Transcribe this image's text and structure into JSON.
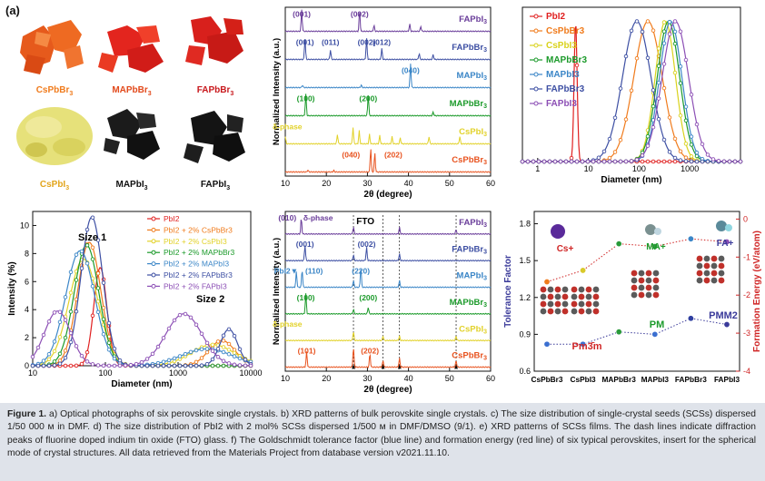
{
  "panel_a": {
    "tag": "(a)",
    "crystals": [
      {
        "name": "CsPbBr3",
        "label": "CsPbBr",
        "sub": "3",
        "color": "#e8511c",
        "label_color": "#f07b1c"
      },
      {
        "name": "MAPbBr3",
        "label": "MAPbBr",
        "sub": "3",
        "color": "#e3251e",
        "label_color": "#e24a1c"
      },
      {
        "name": "FAPbBr3",
        "label": "FAPbBr",
        "sub": "3",
        "color": "#d8201c",
        "label_color": "#c8181c"
      },
      {
        "name": "CsPbI3",
        "label": "CsPbI",
        "sub": "3",
        "color": "#e6e17a",
        "label_color": "#e2a51c"
      },
      {
        "name": "MAPbI3",
        "label": "MAPbI",
        "sub": "3",
        "color": "#1a1a1a",
        "label_color": "#111111"
      },
      {
        "name": "FAPbI3",
        "label": "FAPbI",
        "sub": "3",
        "color": "#151515",
        "label_color": "#111111"
      }
    ]
  },
  "chart_data": [
    {
      "id": "b",
      "type": "line",
      "xlabel": "2θ (degree)",
      "ylabel": "Normalized Intensity (a.u.)",
      "xlim": [
        10,
        60
      ],
      "xticks": [
        10,
        20,
        30,
        40,
        50,
        60
      ],
      "series": [
        {
          "name": "FAPbI3",
          "color": "#6a3d9a",
          "peaks": [
            {
              "x": 14.0,
              "h": 0.9
            },
            {
              "x": 28.1,
              "h": 0.9
            },
            {
              "x": 31.6,
              "h": 0.25
            },
            {
              "x": 40.3,
              "h": 0.3
            },
            {
              "x": 43.0,
              "h": 0.2
            }
          ],
          "labels": [
            {
              "x": 14.0,
              "text": "(001)"
            },
            {
              "x": 28.1,
              "text": "(002)"
            }
          ]
        },
        {
          "name": "FAPbBr3",
          "color": "#3d4fa3",
          "peaks": [
            {
              "x": 14.8,
              "h": 0.9
            },
            {
              "x": 21.0,
              "h": 0.4
            },
            {
              "x": 29.8,
              "h": 0.9
            },
            {
              "x": 33.5,
              "h": 0.45
            },
            {
              "x": 42.6,
              "h": 0.25
            },
            {
              "x": 46.0,
              "h": 0.2
            }
          ],
          "labels": [
            {
              "x": 14.8,
              "text": "(001)"
            },
            {
              "x": 21.0,
              "text": "(011)"
            },
            {
              "x": 29.8,
              "text": "(002)"
            },
            {
              "x": 33.5,
              "text": "(012)"
            }
          ]
        },
        {
          "name": "MAPbI3",
          "color": "#3b86c7",
          "peaks": [
            {
              "x": 40.5,
              "h": 1.0
            },
            {
              "x": 14.2,
              "h": 0.1
            },
            {
              "x": 28.5,
              "h": 0.1
            }
          ],
          "labels": [
            {
              "x": 40.5,
              "text": "(040)"
            }
          ]
        },
        {
          "name": "MAPbBr3",
          "color": "#1b9a2a",
          "peaks": [
            {
              "x": 15.0,
              "h": 0.9
            },
            {
              "x": 30.2,
              "h": 0.9
            },
            {
              "x": 46.0,
              "h": 0.15
            }
          ],
          "labels": [
            {
              "x": 15.0,
              "text": "(100)"
            },
            {
              "x": 30.2,
              "text": "(200)"
            }
          ]
        },
        {
          "name": "CsPbI3",
          "color": "#e2d22a",
          "peaks": [
            {
              "x": 10.0,
              "h": 0.3
            },
            {
              "x": 22.7,
              "h": 0.4
            },
            {
              "x": 26.5,
              "h": 0.7
            },
            {
              "x": 28.0,
              "h": 0.55
            },
            {
              "x": 30.5,
              "h": 0.4
            },
            {
              "x": 33.0,
              "h": 0.35
            },
            {
              "x": 36.0,
              "h": 0.3
            },
            {
              "x": 38.0,
              "h": 0.25
            },
            {
              "x": 45.0,
              "h": 0.3
            },
            {
              "x": 52.5,
              "h": 0.3
            }
          ],
          "labels": [
            {
              "x": 10.5,
              "text": "δ-phase"
            }
          ]
        },
        {
          "name": "CsPbBr3",
          "color": "#e8531f",
          "peaks": [
            {
              "x": 30.8,
              "h": 1.0
            },
            {
              "x": 31.8,
              "h": 0.8
            },
            {
              "x": 15.5,
              "h": 0.08
            },
            {
              "x": 21.8,
              "h": 0.06
            }
          ],
          "labels": [
            {
              "x": 26.0,
              "text": "(040)"
            },
            {
              "x": 36.3,
              "text": "(202)"
            }
          ]
        }
      ]
    },
    {
      "id": "c",
      "type": "line",
      "xlabel": "Diameter (nm)",
      "ylabel": "",
      "xscale": "log",
      "xlim": [
        0.5,
        10000
      ],
      "xticks": [
        1,
        10,
        100,
        1000
      ],
      "series": [
        {
          "name": "PbI2",
          "color": "#e02020",
          "peaks": [
            {
              "mu": 5.6,
              "sigma": 0.03
            }
          ]
        },
        {
          "name": "CsPbBr3",
          "color": "#f07b1c",
          "peaks": [
            {
              "mu": 150,
              "sigma": 0.28
            }
          ]
        },
        {
          "name": "CsPbI3",
          "color": "#d9d21c",
          "peaks": [
            {
              "mu": 330,
              "sigma": 0.2
            }
          ]
        },
        {
          "name": "MAPbBr3",
          "color": "#1b9a2a",
          "peaks": [
            {
              "mu": 380,
              "sigma": 0.22
            }
          ]
        },
        {
          "name": "MAPbI3",
          "color": "#3b86c7",
          "peaks": [
            {
              "mu": 420,
              "sigma": 0.22
            }
          ]
        },
        {
          "name": "FAPbBr3",
          "color": "#3d4fa3",
          "peaks": [
            {
              "mu": 90,
              "sigma": 0.28
            }
          ]
        },
        {
          "name": "FAPbI3",
          "color": "#8c4fb5",
          "peaks": [
            {
              "mu": 520,
              "sigma": 0.26
            }
          ]
        }
      ]
    },
    {
      "id": "d",
      "type": "line",
      "xlabel": "Diameter (nm)",
      "ylabel": "Intensity (%)",
      "xscale": "log",
      "xlim": [
        10,
        10000
      ],
      "ylim": [
        0,
        11
      ],
      "xticks": [
        10,
        100,
        1000,
        10000
      ],
      "yticks": [
        0,
        2,
        4,
        6,
        8,
        10
      ],
      "annotations": [
        "Size 1",
        "Size 2"
      ],
      "series": [
        {
          "name": "PbI2",
          "color": "#e02020",
          "peaks": [
            {
              "mu": 85,
              "sigma": 0.09,
              "h": 7.0
            }
          ]
        },
        {
          "name": "PbI2 + 2% CsPbBr3",
          "color": "#f07b1c",
          "peaks": [
            {
              "mu": 60,
              "sigma": 0.16,
              "h": 8.8
            },
            {
              "mu": 4000,
              "sigma": 0.18,
              "h": 1.8
            }
          ]
        },
        {
          "name": "PbI2 + 2% CsPbI3",
          "color": "#e2d22a",
          "peaks": [
            {
              "mu": 50,
              "sigma": 0.2,
              "h": 7.6
            },
            {
              "mu": 3000,
              "sigma": 0.3,
              "h": 1.5
            }
          ]
        },
        {
          "name": "PbI2 + 2% MAPbBr3",
          "color": "#1b9a2a",
          "peaks": [
            {
              "mu": 55,
              "sigma": 0.17,
              "h": 8.6
            }
          ]
        },
        {
          "name": "PbI2 + 2% MAPbI3",
          "color": "#3b86c7",
          "peaks": [
            {
              "mu": 45,
              "sigma": 0.2,
              "h": 8.2
            },
            {
              "mu": 2500,
              "sigma": 0.35,
              "h": 1.2
            }
          ]
        },
        {
          "name": "PbI2 + 2% FAPbBr3",
          "color": "#3d4fa3",
          "peaks": [
            {
              "mu": 65,
              "sigma": 0.15,
              "h": 10.6
            },
            {
              "mu": 5000,
              "sigma": 0.12,
              "h": 2.6
            }
          ]
        },
        {
          "name": "PbI2 + 2% FAPbI3",
          "color": "#8c4fb5",
          "peaks": [
            {
              "mu": 22,
              "sigma": 0.18,
              "h": 3.9
            },
            {
              "mu": 1200,
              "sigma": 0.25,
              "h": 3.7
            }
          ]
        }
      ]
    },
    {
      "id": "e",
      "type": "line",
      "xlabel": "2θ (degree)",
      "ylabel": "Normalized Intensity (a.u.)",
      "xlim": [
        10,
        60
      ],
      "xticks": [
        10,
        20,
        30,
        40,
        50,
        60
      ],
      "dashed_lines": [
        26.6,
        33.8,
        37.8,
        51.6
      ],
      "fto_label": "FTO",
      "series": [
        {
          "name": "FAPbI3",
          "color": "#6a3d9a",
          "peaks": [
            {
              "x": 13.9,
              "h": 0.7
            },
            {
              "x": 26.6,
              "h": 0.3
            },
            {
              "x": 37.8,
              "h": 0.3
            },
            {
              "x": 51.6,
              "h": 0.2
            }
          ],
          "labels": [
            {
              "x": 10.5,
              "text": "(010)"
            },
            {
              "x": 18.0,
              "text": "δ-phase"
            }
          ]
        },
        {
          "name": "FAPbBr3",
          "color": "#3d4fa3",
          "peaks": [
            {
              "x": 14.8,
              "h": 0.7
            },
            {
              "x": 26.6,
              "h": 0.25
            },
            {
              "x": 29.8,
              "h": 0.6
            },
            {
              "x": 37.8,
              "h": 0.3
            }
          ],
          "labels": [
            {
              "x": 14.8,
              "text": "(001)"
            },
            {
              "x": 29.8,
              "text": "(002)"
            }
          ]
        },
        {
          "name": "MAPbI3",
          "color": "#3b86c7",
          "peaks": [
            {
              "x": 12.7,
              "h": 0.7
            },
            {
              "x": 14.1,
              "h": 0.8
            },
            {
              "x": 28.4,
              "h": 0.9
            },
            {
              "x": 26.6,
              "h": 0.3
            },
            {
              "x": 37.8,
              "h": 0.3
            }
          ],
          "labels": [
            {
              "x": 10.2,
              "text": "PbI2▼"
            },
            {
              "x": 17.0,
              "text": "(110)"
            },
            {
              "x": 28.4,
              "text": "(220)"
            }
          ]
        },
        {
          "name": "MAPbBr3",
          "color": "#1b9a2a",
          "peaks": [
            {
              "x": 15.0,
              "h": 0.9
            },
            {
              "x": 30.2,
              "h": 0.3
            },
            {
              "x": 26.6,
              "h": 0.2
            }
          ],
          "labels": [
            {
              "x": 15.0,
              "text": "(100)"
            },
            {
              "x": 30.2,
              "text": "(200)"
            }
          ]
        },
        {
          "name": "CsPbI3",
          "color": "#e2d22a",
          "peaks": [
            {
              "x": 26.6,
              "h": 0.4
            },
            {
              "x": 33.8,
              "h": 0.2
            },
            {
              "x": 37.8,
              "h": 0.2
            },
            {
              "x": 51.6,
              "h": 0.2
            }
          ],
          "labels": [
            {
              "x": 10.5,
              "text": "δ-phase"
            }
          ]
        },
        {
          "name": "CsPbBr3",
          "color": "#e8531f",
          "peaks": [
            {
              "x": 15.2,
              "h": 0.7
            },
            {
              "x": 26.6,
              "h": 0.9
            },
            {
              "x": 30.6,
              "h": 0.6
            },
            {
              "x": 33.8,
              "h": 0.3
            },
            {
              "x": 37.8,
              "h": 0.4
            },
            {
              "x": 51.6,
              "h": 0.3
            }
          ],
          "labels": [
            {
              "x": 15.2,
              "text": "(101)"
            },
            {
              "x": 30.6,
              "text": "(202)"
            }
          ]
        }
      ]
    },
    {
      "id": "f",
      "type": "line",
      "ylabel": "Tolerance Factor",
      "y2label": "Formation Energy (eV/atom)",
      "categories": [
        "CsPbBr3",
        "CsPbI3",
        "MAPbBr3",
        "MAPbI3",
        "FAPbBr3",
        "FAPbI3"
      ],
      "ylim": [
        0.6,
        1.9
      ],
      "yticks": [
        0.6,
        0.9,
        1.2,
        1.5,
        1.8
      ],
      "y2lim": [
        -4,
        0.2
      ],
      "y2ticks": [
        0,
        -1,
        -2,
        -3,
        -4
      ],
      "series": [
        {
          "name": "Tolerance Factor",
          "color": "#3b3b9a",
          "values": [
            0.82,
            0.82,
            0.92,
            0.9,
            1.03,
            0.98
          ]
        },
        {
          "name": "Formation Energy",
          "color": "#d02626",
          "values": [
            -1.65,
            -1.35,
            -0.65,
            -0.72,
            -0.52,
            -0.6
          ]
        }
      ],
      "annotations": [
        "Cs+",
        "MA+",
        "FA+",
        "PM",
        "PMM2",
        "Pm3̄m"
      ]
    }
  ],
  "caption": {
    "head": "Figure 1.",
    "text": "a) Optical photographs of six perovskite single crystals. b) XRD patterns of bulk perovskite single crystals. c) The size distribution of single-crystal seeds (SCSs) dispersed 1/50 000 м in DMF. d) The size distribution of PbI2 with 2 mol% SCSs dispersed 1/500 м in DMF/DMSO (9/1). e) XRD patterns of SCSs films. The dash lines indicate diffraction peaks of fluorine doped indium tin oxide (FTO) glass. f) The Goldschmidt tolerance factor (blue line) and formation energy (red line) of six typical perovskites, insert for the spherical mode of crystal structures. All data retrieved from the Materials Project from database version v2021.11.10."
  }
}
